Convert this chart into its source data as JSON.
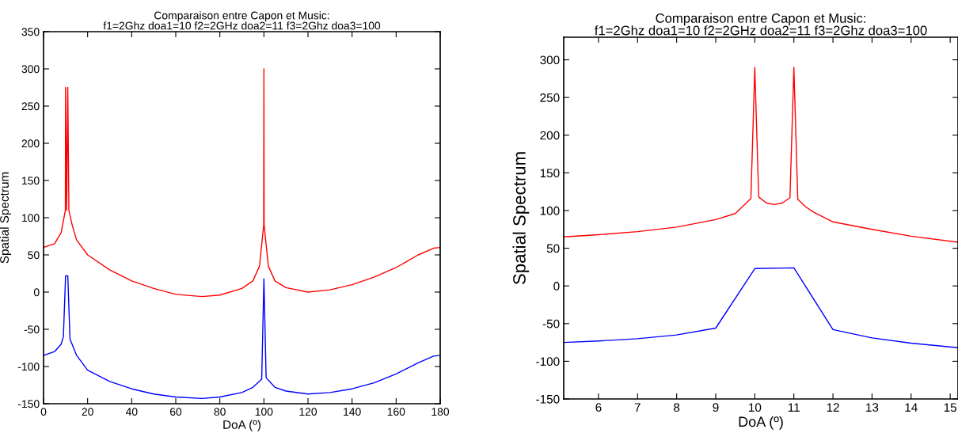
{
  "chart_data": [
    {
      "type": "line",
      "title": "Comparaison entre Capon et Music:\nf1=2Ghz doa1=10 f2=2GHz doa2=11 f3=2Ghz doa3=100",
      "xlabel": "DoA (º)",
      "ylabel": "Spatial Spectrum",
      "xlim": [
        0,
        180
      ],
      "ylim": [
        -150,
        350
      ],
      "xticks": [
        0,
        20,
        40,
        60,
        80,
        100,
        120,
        140,
        160,
        180
      ],
      "yticks": [
        -150,
        -100,
        -50,
        0,
        50,
        100,
        150,
        200,
        250,
        300,
        350
      ],
      "grid": false,
      "legend": false,
      "series": [
        {
          "color": "#ff0000",
          "x": [
            0,
            5,
            8,
            9.9,
            10,
            10.5,
            11,
            11.5,
            13,
            15,
            20,
            30,
            40,
            50,
            60,
            72,
            80,
            90,
            95,
            98,
            99.9,
            100,
            100.1,
            102,
            105,
            110,
            120,
            130,
            140,
            150,
            160,
            170,
            177,
            180
          ],
          "values": [
            60,
            65,
            80,
            110,
            275,
            110,
            275,
            110,
            90,
            70,
            50,
            30,
            15,
            5,
            -3,
            -6,
            -4,
            5,
            15,
            35,
            90,
            300,
            90,
            35,
            15,
            6,
            0,
            3,
            10,
            20,
            33,
            50,
            59,
            60
          ]
        },
        {
          "color": "#0000ff",
          "x": [
            0,
            5,
            8,
            9,
            10,
            11,
            12,
            15,
            20,
            30,
            40,
            50,
            60,
            72,
            80,
            90,
            95,
            99,
            100,
            101,
            105,
            110,
            120,
            130,
            140,
            150,
            160,
            170,
            177,
            180
          ],
          "values": [
            -85,
            -80,
            -70,
            -60,
            22,
            22,
            -63,
            -85,
            -105,
            -120,
            -130,
            -137,
            -141,
            -143,
            -141,
            -135,
            -128,
            -117,
            18,
            -115,
            -128,
            -133,
            -137,
            -135,
            -130,
            -122,
            -110,
            -95,
            -86,
            -85
          ]
        }
      ]
    },
    {
      "type": "line",
      "title": "Comparaison entre Capon et Music:\nf1=2Ghz doa1=10 f2=2GHz doa2=11 f3=2Ghz doa3=100",
      "xlabel": "DoA (º)",
      "ylabel": "Spatial Spectrum",
      "xlim": [
        5.11,
        15.2
      ],
      "ylim": [
        -150,
        330
      ],
      "xticks": [
        6,
        7,
        8,
        9,
        10,
        11,
        12,
        13,
        14,
        15
      ],
      "yticks": [
        -150,
        -100,
        -50,
        0,
        50,
        100,
        150,
        200,
        250,
        300
      ],
      "grid": false,
      "legend": false,
      "series": [
        {
          "color": "#ff0000",
          "x": [
            5.11,
            6,
            7,
            8,
            9,
            9.5,
            9.9,
            10,
            10.1,
            10.3,
            10.5,
            10.7,
            10.9,
            11,
            11.1,
            11.3,
            11.5,
            12,
            13,
            14,
            15.2
          ],
          "values": [
            65,
            68,
            72,
            78,
            88,
            96,
            116,
            290,
            118,
            110,
            108,
            110,
            117,
            290,
            115,
            105,
            98,
            85,
            75,
            66,
            58
          ]
        },
        {
          "color": "#0000ff",
          "x": [
            5.11,
            6,
            7,
            8,
            9,
            10,
            11,
            12,
            13,
            14,
            15.2
          ],
          "values": [
            -75,
            -73,
            -70,
            -65,
            -56,
            23,
            24,
            -58,
            -69,
            -76,
            -82
          ]
        }
      ]
    }
  ]
}
